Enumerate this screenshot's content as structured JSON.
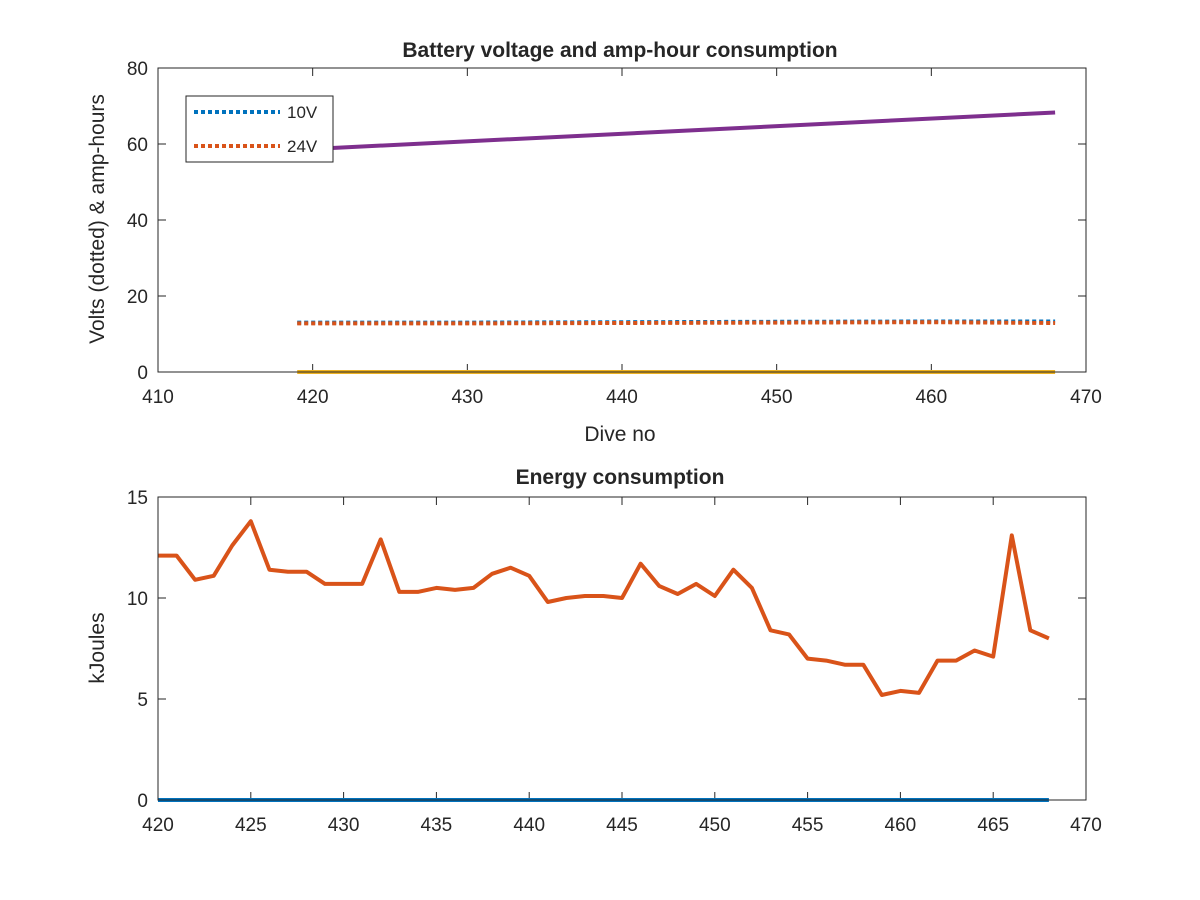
{
  "chart_data": [
    {
      "type": "line",
      "title": "Battery voltage and amp-hour consumption",
      "xlabel": "Dive no",
      "ylabel": "Volts (dotted) & amp-hours",
      "xlim": [
        410,
        470
      ],
      "ylim": [
        0,
        80
      ],
      "xticks": [
        410,
        420,
        430,
        440,
        450,
        460,
        470
      ],
      "yticks": [
        0,
        20,
        40,
        60,
        80
      ],
      "grid": false,
      "legend_position": "top-left",
      "series": [
        {
          "name": "10V",
          "style": "dotted",
          "color": "#0072BD",
          "x": [
            419,
            430,
            440,
            450,
            460,
            468
          ],
          "y": [
            13.0,
            13.0,
            13.1,
            13.2,
            13.3,
            13.3
          ]
        },
        {
          "name": "24V",
          "style": "dotted",
          "color": "#D95319",
          "x": [
            419,
            430,
            440,
            450,
            460,
            468
          ],
          "y": [
            12.8,
            12.8,
            12.9,
            13.0,
            13.1,
            12.9
          ]
        },
        {
          "style": "solid",
          "color": "#7E2F8E",
          "x": [
            419,
            468
          ],
          "y": [
            58.5,
            68.3
          ]
        },
        {
          "style": "solid",
          "color": "#EDB120",
          "x": [
            419,
            468
          ],
          "y": [
            0,
            0
          ]
        }
      ]
    },
    {
      "type": "line",
      "title": "Energy consumption",
      "xlabel": "",
      "ylabel": "kJoules",
      "xlim": [
        420,
        470
      ],
      "ylim": [
        0,
        15
      ],
      "xticks": [
        420,
        425,
        430,
        435,
        440,
        445,
        450,
        455,
        460,
        465,
        470
      ],
      "yticks": [
        0,
        5,
        10,
        15
      ],
      "grid": false,
      "series": [
        {
          "style": "solid",
          "color": "#0072BD",
          "x": [
            420,
            468
          ],
          "y": [
            0,
            0
          ]
        },
        {
          "style": "solid",
          "color": "#D95319",
          "x": [
            420,
            421,
            422,
            423,
            424,
            425,
            426,
            427,
            428,
            429,
            430,
            431,
            432,
            433,
            434,
            435,
            436,
            437,
            438,
            439,
            440,
            441,
            442,
            443,
            444,
            445,
            446,
            447,
            448,
            449,
            450,
            451,
            452,
            453,
            454,
            455,
            456,
            457,
            458,
            459,
            460,
            461,
            462,
            463,
            464,
            465,
            466,
            467,
            468
          ],
          "y": [
            12.1,
            12.1,
            10.9,
            11.1,
            12.6,
            13.8,
            11.4,
            11.3,
            11.3,
            10.7,
            10.7,
            10.7,
            12.9,
            10.3,
            10.3,
            10.5,
            10.4,
            10.5,
            11.2,
            11.5,
            11.1,
            9.8,
            10.0,
            10.1,
            10.1,
            10.0,
            11.7,
            10.6,
            10.2,
            10.7,
            10.1,
            11.4,
            10.5,
            8.4,
            8.2,
            7.0,
            6.9,
            6.7,
            6.7,
            5.2,
            5.4,
            5.3,
            6.9,
            6.9,
            7.4,
            7.1,
            13.1,
            8.4,
            8.0
          ]
        }
      ]
    }
  ]
}
